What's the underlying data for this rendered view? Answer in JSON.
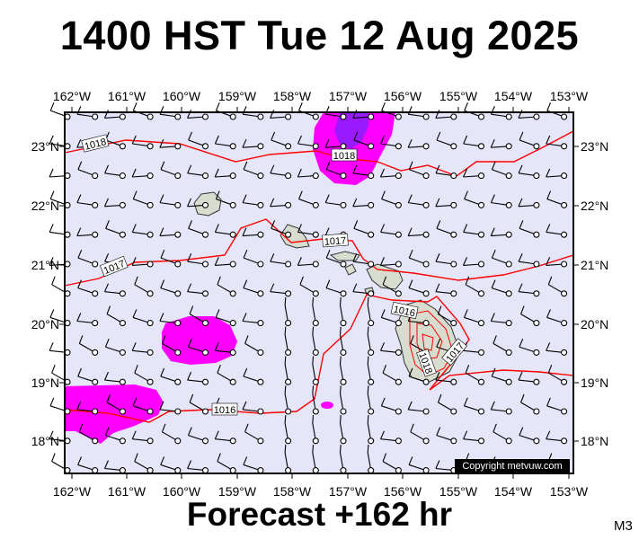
{
  "title": "1400 HST Tue 12 Aug 2025",
  "footer": "Forecast +162 hr",
  "model_code": "M3",
  "copyright": "Copyright metvuw.com",
  "lon_labels": [
    "162°W",
    "161°W",
    "160°W",
    "159°W",
    "158°W",
    "157°W",
    "156°W",
    "155°W",
    "154°W",
    "153°W"
  ],
  "lat_labels": [
    "23°N",
    "22°N",
    "21°N",
    "20°N",
    "19°N",
    "18°N"
  ],
  "isobar_labels": [
    "1018",
    "1018",
    "1017",
    "1017",
    "1016",
    "1016",
    "1018",
    "1017"
  ],
  "colors": {
    "ocean": "#e6e6fa",
    "isobar": "#ff0000",
    "precip_light": "#ff00ff",
    "precip_heavy": "#9a1aff",
    "land": "#d8ddd0"
  }
}
